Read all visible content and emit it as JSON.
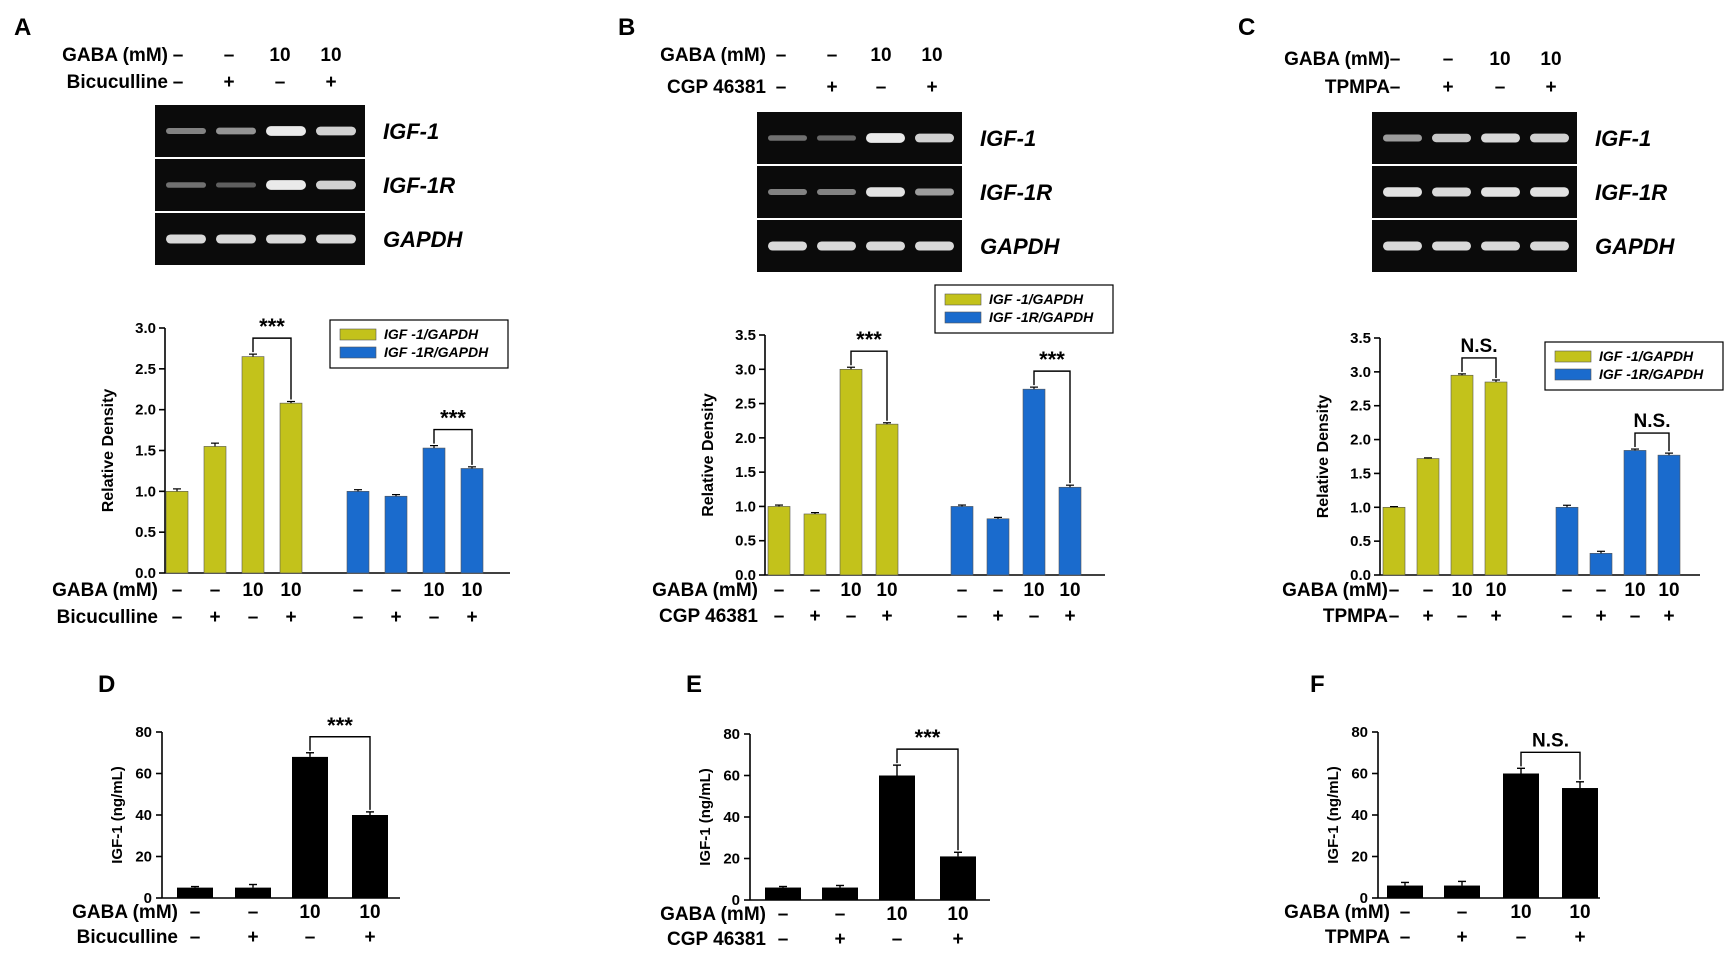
{
  "colors": {
    "igf1_series": "#c3c21b",
    "igf1r_series": "#1a6bcd",
    "elisa_bar": "#000000",
    "gel_background": "#0b0b0b",
    "gel_band": "#f4f4f4"
  },
  "panels": [
    {
      "label": "A",
      "antagonist": "Bicuculline",
      "gaba_label": "GABA (mM)",
      "gaba_values": [
        "–",
        "–",
        "10",
        "10"
      ],
      "antagonist_values": [
        "–",
        "+",
        "–",
        "+"
      ],
      "gel": {
        "genes": [
          "IGF-1",
          "IGF-1R",
          "GAPDH"
        ],
        "band_intensity": [
          [
            0.35,
            0.45,
            0.95,
            0.8
          ],
          [
            0.25,
            0.15,
            0.95,
            0.8
          ],
          [
            0.85,
            0.85,
            0.85,
            0.85
          ]
        ]
      },
      "density_chart": {
        "type": "bar",
        "ylabel": "Relative Density",
        "ylim": [
          0,
          3.0
        ],
        "yticks": [
          "0.0",
          "0.5",
          "1.0",
          "1.5",
          "2.0",
          "2.5",
          "3.0"
        ],
        "ytick_values": [
          0,
          0.5,
          1.0,
          1.5,
          2.0,
          2.5,
          3.0
        ],
        "legend": [
          "IGF -1/GAPDH",
          "IGF -1R/GAPDH"
        ],
        "series": [
          {
            "name": "IGF -1/GAPDH",
            "values": [
              1.0,
              1.55,
              2.65,
              2.08
            ],
            "errors": [
              0.03,
              0.04,
              0.03,
              0.02
            ]
          },
          {
            "name": "IGF -1R/GAPDH",
            "values": [
              1.0,
              0.94,
              1.53,
              1.28
            ],
            "errors": [
              0.02,
              0.02,
              0.03,
              0.02
            ]
          }
        ],
        "significance": [
          {
            "series": 0,
            "from": 2,
            "to": 3,
            "label": "***"
          },
          {
            "series": 1,
            "from": 2,
            "to": 3,
            "label": "***"
          }
        ]
      }
    },
    {
      "label": "B",
      "antagonist": "CGP 46381",
      "gaba_label": "GABA (mM)",
      "gaba_values": [
        "–",
        "–",
        "10",
        "10"
      ],
      "antagonist_values": [
        "–",
        "+",
        "–",
        "+"
      ],
      "gel": {
        "genes": [
          "IGF-1",
          "IGF-1R",
          "GAPDH"
        ],
        "band_intensity": [
          [
            0.25,
            0.2,
            0.95,
            0.8
          ],
          [
            0.35,
            0.35,
            0.9,
            0.5
          ],
          [
            0.85,
            0.85,
            0.85,
            0.85
          ]
        ]
      },
      "density_chart": {
        "type": "bar",
        "ylabel": "Relative Density",
        "ylim": [
          0,
          3.5
        ],
        "yticks": [
          "0.0",
          "0.5",
          "1.0",
          "1.5",
          "2.0",
          "2.5",
          "3.0",
          "3.5"
        ],
        "ytick_values": [
          0,
          0.5,
          1.0,
          1.5,
          2.0,
          2.5,
          3.0,
          3.5
        ],
        "legend": [
          "IGF -1/GAPDH",
          "IGF -1R/GAPDH"
        ],
        "series": [
          {
            "name": "IGF -1/GAPDH",
            "values": [
              1.0,
              0.89,
              3.0,
              2.2
            ],
            "errors": [
              0.02,
              0.02,
              0.03,
              0.02
            ]
          },
          {
            "name": "IGF -1R/GAPDH",
            "values": [
              1.0,
              0.82,
              2.71,
              1.28
            ],
            "errors": [
              0.02,
              0.02,
              0.03,
              0.03
            ]
          }
        ],
        "significance": [
          {
            "series": 0,
            "from": 2,
            "to": 3,
            "label": "***"
          },
          {
            "series": 1,
            "from": 2,
            "to": 3,
            "label": "***"
          }
        ]
      }
    },
    {
      "label": "C",
      "antagonist": "TPMPA",
      "gaba_label": "GABA (mM)",
      "gaba_values": [
        "–",
        "–",
        "10",
        "10"
      ],
      "antagonist_values": [
        "–",
        "+",
        "–",
        "+"
      ],
      "gel": {
        "genes": [
          "IGF-1",
          "IGF-1R",
          "GAPDH"
        ],
        "band_intensity": [
          [
            0.5,
            0.75,
            0.85,
            0.8
          ],
          [
            0.9,
            0.85,
            0.9,
            0.9
          ],
          [
            0.85,
            0.85,
            0.85,
            0.85
          ]
        ]
      },
      "density_chart": {
        "type": "bar",
        "ylabel": "Relative Density",
        "ylim": [
          0,
          3.5
        ],
        "yticks": [
          "0.0",
          "0.5",
          "1.0",
          "1.5",
          "2.0",
          "2.5",
          "3.0",
          "3.5"
        ],
        "ytick_values": [
          0,
          0.5,
          1.0,
          1.5,
          2.0,
          2.5,
          3.0,
          3.5
        ],
        "legend": [
          "IGF -1/GAPDH",
          "IGF -1R/GAPDH"
        ],
        "series": [
          {
            "name": "IGF -1/GAPDH",
            "values": [
              1.0,
              1.72,
              2.95,
              2.85
            ],
            "errors": [
              0.01,
              0.01,
              0.02,
              0.03
            ]
          },
          {
            "name": "IGF -1R/GAPDH",
            "values": [
              1.0,
              0.32,
              1.84,
              1.77
            ],
            "errors": [
              0.03,
              0.03,
              0.02,
              0.03
            ]
          }
        ],
        "significance": [
          {
            "series": 0,
            "from": 2,
            "to": 3,
            "label": "N.S."
          },
          {
            "series": 1,
            "from": 2,
            "to": 3,
            "label": "N.S."
          }
        ]
      }
    },
    {
      "label": "D",
      "antagonist": "Bicuculline",
      "gaba_label": "GABA (mM)",
      "gaba_values": [
        "–",
        "–",
        "10",
        "10"
      ],
      "antagonist_values": [
        "–",
        "+",
        "–",
        "+"
      ],
      "elisa_chart": {
        "type": "bar",
        "ylabel": "IGF-1 (ng/mL)",
        "ylim": [
          0,
          80
        ],
        "yticks": [
          "0",
          "20",
          "40",
          "60",
          "80"
        ],
        "ytick_values": [
          0,
          20,
          40,
          60,
          80
        ],
        "values": [
          5,
          5,
          68,
          40
        ],
        "errors": [
          0.5,
          1.5,
          2,
          1.5
        ],
        "significance": [
          {
            "from": 2,
            "to": 3,
            "label": "***"
          }
        ]
      }
    },
    {
      "label": "E",
      "antagonist": "CGP 46381",
      "gaba_label": "GABA (mM)",
      "gaba_values": [
        "–",
        "–",
        "10",
        "10"
      ],
      "antagonist_values": [
        "–",
        "+",
        "–",
        "+"
      ],
      "elisa_chart": {
        "type": "bar",
        "ylabel": "IGF-1 (ng/mL)",
        "ylim": [
          0,
          80
        ],
        "yticks": [
          "0",
          "20",
          "40",
          "60",
          "80"
        ],
        "ytick_values": [
          0,
          20,
          40,
          60,
          80
        ],
        "values": [
          6,
          6,
          60,
          21
        ],
        "errors": [
          0.5,
          1,
          5,
          2
        ],
        "significance": [
          {
            "from": 2,
            "to": 3,
            "label": "***"
          }
        ]
      }
    },
    {
      "label": "F",
      "antagonist": "TPMPA",
      "gaba_label": "GABA (mM)",
      "gaba_values": [
        "–",
        "–",
        "10",
        "10"
      ],
      "antagonist_values": [
        "–",
        "+",
        "–",
        "+"
      ],
      "elisa_chart": {
        "type": "bar",
        "ylabel": "IGF-1 (ng/mL)",
        "ylim": [
          0,
          80
        ],
        "yticks": [
          "0",
          "20",
          "40",
          "60",
          "80"
        ],
        "ytick_values": [
          0,
          20,
          40,
          60,
          80
        ],
        "values": [
          6,
          6,
          60,
          53
        ],
        "errors": [
          1.5,
          2,
          2.5,
          3
        ],
        "significance": [
          {
            "from": 2,
            "to": 3,
            "label": "N.S."
          }
        ]
      }
    }
  ],
  "chart_data": [
    {
      "panel": "A",
      "type": "bar",
      "ylabel": "Relative Density",
      "ylim": [
        0,
        3.0
      ],
      "categories": [
        "GABA – / Bicuculline –",
        "GABA – / Bicuculline +",
        "GABA 10 / Bicuculline –",
        "GABA 10 / Bicuculline +"
      ],
      "series": [
        {
          "name": "IGF -1/GAPDH",
          "values": [
            1.0,
            1.55,
            2.65,
            2.08
          ]
        },
        {
          "name": "IGF -1R/GAPDH",
          "values": [
            1.0,
            0.94,
            1.53,
            1.28
          ]
        }
      ]
    },
    {
      "panel": "B",
      "type": "bar",
      "ylabel": "Relative Density",
      "ylim": [
        0,
        3.5
      ],
      "categories": [
        "GABA – / CGP 46381 –",
        "GABA – / CGP 46381 +",
        "GABA 10 / CGP 46381 –",
        "GABA 10 / CGP 46381 +"
      ],
      "series": [
        {
          "name": "IGF -1/GAPDH",
          "values": [
            1.0,
            0.89,
            3.0,
            2.2
          ]
        },
        {
          "name": "IGF -1R/GAPDH",
          "values": [
            1.0,
            0.82,
            2.71,
            1.28
          ]
        }
      ]
    },
    {
      "panel": "C",
      "type": "bar",
      "ylabel": "Relative Density",
      "ylim": [
        0,
        3.5
      ],
      "categories": [
        "GABA – / TPMPA –",
        "GABA – / TPMPA +",
        "GABA 10 / TPMPA –",
        "GABA 10 / TPMPA +"
      ],
      "series": [
        {
          "name": "IGF -1/GAPDH",
          "values": [
            1.0,
            1.72,
            2.95,
            2.85
          ]
        },
        {
          "name": "IGF -1R/GAPDH",
          "values": [
            1.0,
            0.32,
            1.84,
            1.77
          ]
        }
      ]
    },
    {
      "panel": "D",
      "type": "bar",
      "ylabel": "IGF-1 (ng/mL)",
      "ylim": [
        0,
        80
      ],
      "categories": [
        "GABA – / Bicuculline –",
        "GABA – / Bicuculline +",
        "GABA 10 / Bicuculline –",
        "GABA 10 / Bicuculline +"
      ],
      "values": [
        5,
        5,
        68,
        40
      ]
    },
    {
      "panel": "E",
      "type": "bar",
      "ylabel": "IGF-1 (ng/mL)",
      "ylim": [
        0,
        80
      ],
      "categories": [
        "GABA – / CGP 46381 –",
        "GABA – / CGP 46381 +",
        "GABA 10 / CGP 46381 –",
        "GABA 10 / CGP 46381 +"
      ],
      "values": [
        6,
        6,
        60,
        21
      ]
    },
    {
      "panel": "F",
      "type": "bar",
      "ylabel": "IGF-1 (ng/mL)",
      "ylim": [
        0,
        80
      ],
      "categories": [
        "GABA – / TPMPA –",
        "GABA – / TPMPA +",
        "GABA 10 / TPMPA –",
        "GABA 10 / TPMPA +"
      ],
      "values": [
        6,
        6,
        60,
        53
      ]
    }
  ]
}
